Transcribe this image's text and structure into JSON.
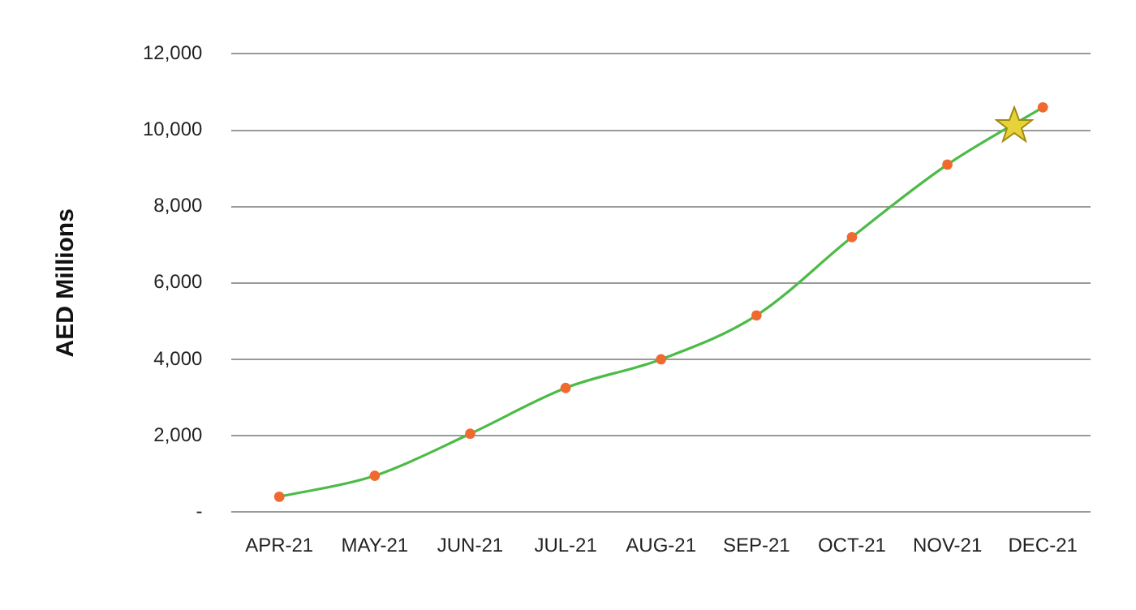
{
  "chart_data": {
    "type": "line",
    "ylabel": "AED Millions",
    "categories": [
      "APR-21",
      "MAY-21",
      "JUN-21",
      "JUL-21",
      "AUG-21",
      "SEP-21",
      "OCT-21",
      "NOV-21",
      "DEC-21"
    ],
    "series": [
      {
        "color": "#4cbb47",
        "colors": [
          "#f06a30",
          "#f06a30",
          "#f06a30",
          "#f06a30",
          "#f06a30",
          "#f06a30",
          "#f06a30",
          "#f06a30",
          "#f06a30"
        ],
        "values": [
          400,
          950,
          2050,
          3250,
          4000,
          5150,
          7200,
          9100,
          10600
        ]
      }
    ],
    "ylim": [
      0,
      12000
    ],
    "yticks": [
      {
        "value": 0,
        "label": "-"
      },
      {
        "value": 2000,
        "label": "2,000"
      },
      {
        "value": 4000,
        "label": "4,000"
      },
      {
        "value": 6000,
        "label": "6,000"
      },
      {
        "value": 8000,
        "label": "8,000"
      },
      {
        "value": 10000,
        "label": "10,000"
      },
      {
        "value": 12000,
        "label": "12,000"
      }
    ],
    "grid": "y",
    "marker": "circle",
    "line_style": "solid",
    "legend": false
  }
}
